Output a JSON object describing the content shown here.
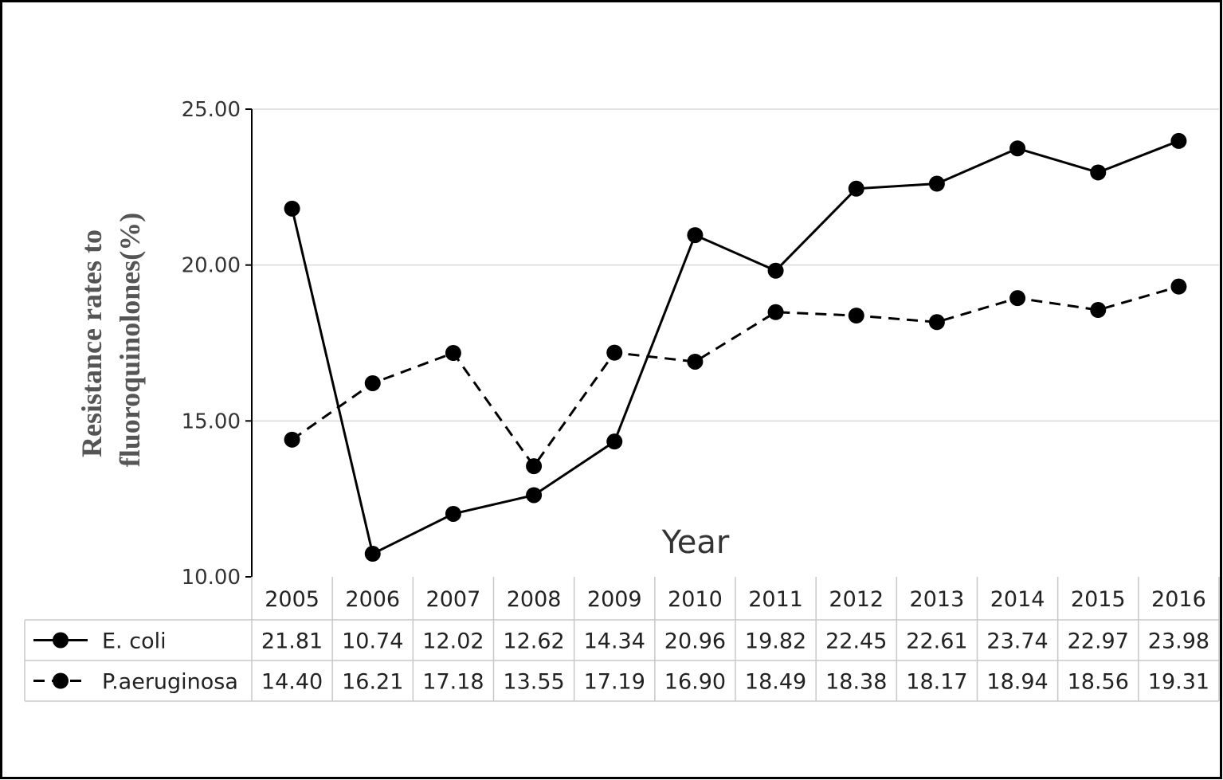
{
  "chart_data": {
    "type": "line",
    "ylabel_lines": [
      "Resistance rates to",
      "fluoroquinolones(%)"
    ],
    "xlabel": "Year",
    "categories": [
      "2005",
      "2006",
      "2007",
      "2008",
      "2009",
      "2010",
      "2011",
      "2012",
      "2013",
      "2014",
      "2015",
      "2016"
    ],
    "ylim": [
      10,
      25
    ],
    "yticks": [
      "10.00",
      "15.00",
      "20.00",
      "25.00"
    ],
    "ytick_values": [
      10,
      15,
      20,
      25
    ],
    "grid": true,
    "series": [
      {
        "name": "E. coli",
        "style": "solid",
        "values": [
          21.81,
          10.74,
          12.02,
          12.62,
          14.34,
          20.96,
          19.82,
          22.45,
          22.61,
          23.74,
          22.97,
          23.98
        ],
        "labels": [
          "21.81",
          "10.74",
          "12.02",
          "12.62",
          "14.34",
          "20.96",
          "19.82",
          "22.45",
          "22.61",
          "23.74",
          "22.97",
          "23.98"
        ]
      },
      {
        "name": "P.aeruginosa",
        "style": "dashed",
        "values": [
          14.4,
          16.21,
          17.18,
          13.55,
          17.19,
          16.9,
          18.49,
          18.38,
          18.17,
          18.94,
          18.56,
          19.31
        ],
        "labels": [
          "14.40",
          "16.21",
          "17.18",
          "13.55",
          "17.19",
          "16.90",
          "18.49",
          "18.38",
          "18.17",
          "18.94",
          "18.56",
          "19.31"
        ]
      }
    ],
    "line_color": "#000000",
    "grid_color": "#d9d9d9",
    "table_border_color": "#c8c8c8",
    "border_color": "#000000"
  }
}
